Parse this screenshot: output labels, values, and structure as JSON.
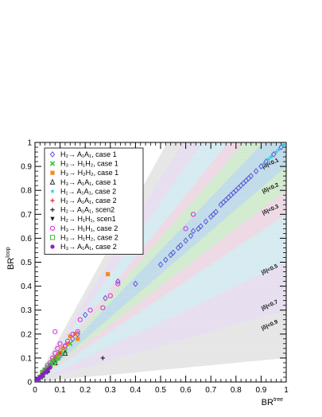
{
  "chart_data": {
    "type": "scatter",
    "xlabel": "BR",
    "xlabel_sup": "tree",
    "ylabel": "BR",
    "ylabel_sup": "loop",
    "xlim": [
      0,
      1
    ],
    "ylim": [
      0,
      1
    ],
    "x_ticks": [
      "0",
      "0.1",
      "0.2",
      "0.3",
      "0.4",
      "0.5",
      "0.6",
      "0.7",
      "0.8",
      "0.9",
      "1"
    ],
    "y_ticks": [
      "0",
      "0.1",
      "0.2",
      "0.3",
      "0.4",
      "0.5",
      "0.6",
      "0.7",
      "0.8",
      "0.9",
      "1"
    ],
    "legend_position": "top-left",
    "bands": [
      {
        "label": "|δ|<0.1",
        "delta": 0.1,
        "color": "#b8d4f0"
      },
      {
        "label": "|δ|<0.2",
        "delta": 0.2,
        "color": "#c6f0c6"
      },
      {
        "label": "|δ|<0.3",
        "delta": 0.3,
        "color": "#f6d2e0"
      },
      {
        "label": "|δ|<0.5",
        "delta": 0.5,
        "color": "#cdeef0"
      },
      {
        "label": "|δ|<0.7",
        "delta": 0.7,
        "color": "#e6d9f2"
      },
      {
        "label": "|δ|<0.9",
        "delta": 0.9,
        "color": "#dcdcdc"
      }
    ],
    "series": [
      {
        "name": "H₂→ A₁A₁, case 1",
        "marker": "diamond-open",
        "color": "#5a5ad8",
        "points": [
          [
            0.98,
            0.98
          ],
          [
            0.95,
            0.95
          ],
          [
            0.92,
            0.92
          ],
          [
            0.9,
            0.9
          ],
          [
            0.88,
            0.88
          ],
          [
            0.86,
            0.86
          ],
          [
            0.85,
            0.85
          ],
          [
            0.84,
            0.84
          ],
          [
            0.83,
            0.83
          ],
          [
            0.82,
            0.82
          ],
          [
            0.81,
            0.81
          ],
          [
            0.8,
            0.8
          ],
          [
            0.79,
            0.79
          ],
          [
            0.78,
            0.78
          ],
          [
            0.77,
            0.77
          ],
          [
            0.76,
            0.76
          ],
          [
            0.75,
            0.75
          ],
          [
            0.74,
            0.74
          ],
          [
            0.72,
            0.71
          ],
          [
            0.71,
            0.7
          ],
          [
            0.7,
            0.69
          ],
          [
            0.68,
            0.67
          ],
          [
            0.66,
            0.65
          ],
          [
            0.65,
            0.64
          ],
          [
            0.63,
            0.63
          ],
          [
            0.62,
            0.61
          ],
          [
            0.6,
            0.59
          ],
          [
            0.58,
            0.57
          ],
          [
            0.57,
            0.56
          ],
          [
            0.55,
            0.54
          ],
          [
            0.54,
            0.53
          ],
          [
            0.52,
            0.51
          ],
          [
            0.5,
            0.49
          ],
          [
            0.4,
            0.41
          ],
          [
            0.33,
            0.42
          ],
          [
            0.28,
            0.35
          ],
          [
            0.2,
            0.28
          ],
          [
            0.17,
            0.2
          ],
          [
            0.15,
            0.18
          ],
          [
            0.12,
            0.15
          ],
          [
            0.1,
            0.11
          ],
          [
            0.08,
            0.09
          ],
          [
            0.06,
            0.07
          ],
          [
            0.05,
            0.05
          ],
          [
            0.04,
            0.04
          ],
          [
            0.03,
            0.03
          ],
          [
            0.02,
            0.02
          ],
          [
            0.01,
            0.01
          ]
        ]
      },
      {
        "name": "H₃→ H₁H₂, case 1",
        "marker": "cross",
        "color": "#2ec82e",
        "points": [
          [
            0.14,
            0.16
          ],
          [
            0.12,
            0.13
          ],
          [
            0.09,
            0.1
          ],
          [
            0.07,
            0.08
          ],
          [
            0.05,
            0.06
          ],
          [
            0.04,
            0.05
          ],
          [
            0.03,
            0.04
          ],
          [
            0.02,
            0.02
          ],
          [
            0.01,
            0.01
          ]
        ]
      },
      {
        "name": "H₃→ H₂H₂, case 1",
        "marker": "square",
        "color": "#f28c1e",
        "points": [
          [
            0.29,
            0.45
          ],
          [
            0.17,
            0.18
          ],
          [
            0.16,
            0.2
          ],
          [
            0.14,
            0.19
          ],
          [
            0.13,
            0.16
          ],
          [
            0.11,
            0.14
          ],
          [
            0.1,
            0.12
          ],
          [
            0.09,
            0.11
          ],
          [
            0.08,
            0.1
          ],
          [
            0.07,
            0.09
          ],
          [
            0.06,
            0.07
          ],
          [
            0.05,
            0.05
          ],
          [
            0.03,
            0.04
          ]
        ]
      },
      {
        "name": "H₃→ A₁A₁, case 1",
        "marker": "triangle-open",
        "color": "#333333",
        "points": [
          [
            0.12,
            0.12
          ],
          [
            0.08,
            0.08
          ],
          [
            0.05,
            0.05
          ],
          [
            0.03,
            0.03
          ]
        ]
      },
      {
        "name": "H₁→ A₁A₁, case 2",
        "marker": "star",
        "color": "#28c8d8",
        "points": [
          [
            0.99,
            0.99
          ],
          [
            0.97,
            0.97
          ],
          [
            0.96,
            0.96
          ],
          [
            0.94,
            0.94
          ],
          [
            0.93,
            0.93
          ],
          [
            0.91,
            0.91
          ],
          [
            0.06,
            0.06
          ],
          [
            0.04,
            0.04
          ]
        ]
      },
      {
        "name": "H₂→ A₁A₁, case 2",
        "marker": "plus",
        "color": "#d83030",
        "points": [
          [
            0.1,
            0.12
          ],
          [
            0.08,
            0.1
          ],
          [
            0.06,
            0.07
          ],
          [
            0.04,
            0.05
          ],
          [
            0.03,
            0.03
          ],
          [
            0.02,
            0.02
          ]
        ]
      },
      {
        "name": "H₂→ A₁A₁, scen2",
        "marker": "plus",
        "color": "#222222",
        "points": [
          [
            0.27,
            0.1
          ],
          [
            0.05,
            0.04
          ],
          [
            0.03,
            0.02
          ],
          [
            0.01,
            0.01
          ]
        ]
      },
      {
        "name": "H₂→ H₁H₁, scen1",
        "marker": "triangle-down",
        "color": "#111111",
        "points": [
          [
            0.03,
            0.03
          ],
          [
            0.02,
            0.02
          ],
          [
            0.01,
            0.01
          ]
        ]
      },
      {
        "name": "H₃→ H₁H₁, case 2",
        "marker": "circle-open",
        "color": "#d828d8",
        "points": [
          [
            0.63,
            0.7
          ],
          [
            0.6,
            0.64
          ],
          [
            0.33,
            0.41
          ],
          [
            0.3,
            0.36
          ],
          [
            0.27,
            0.31
          ],
          [
            0.22,
            0.3
          ],
          [
            0.18,
            0.26
          ],
          [
            0.17,
            0.21
          ],
          [
            0.15,
            0.2
          ],
          [
            0.13,
            0.17
          ],
          [
            0.12,
            0.15
          ],
          [
            0.1,
            0.16
          ],
          [
            0.09,
            0.14
          ],
          [
            0.08,
            0.21
          ],
          [
            0.08,
            0.12
          ],
          [
            0.07,
            0.1
          ],
          [
            0.06,
            0.08
          ],
          [
            0.05,
            0.07
          ],
          [
            0.04,
            0.05
          ],
          [
            0.03,
            0.03
          ],
          [
            0.02,
            0.02
          ]
        ]
      },
      {
        "name": "H₃→ H₁H₂, case 2",
        "marker": "square-open",
        "color": "#3cb83c",
        "points": [
          [
            0.1,
            0.12
          ],
          [
            0.09,
            0.1
          ],
          [
            0.08,
            0.09
          ],
          [
            0.07,
            0.08
          ],
          [
            0.06,
            0.07
          ],
          [
            0.05,
            0.06
          ],
          [
            0.04,
            0.05
          ],
          [
            0.03,
            0.04
          ],
          [
            0.02,
            0.02
          ]
        ]
      },
      {
        "name": "H₃→ A₁A₁, case 2",
        "marker": "circle",
        "color": "#8a1ec8",
        "points": [
          [
            0.06,
            0.06
          ],
          [
            0.05,
            0.05
          ],
          [
            0.04,
            0.04
          ],
          [
            0.03,
            0.03
          ],
          [
            0.02,
            0.02
          ],
          [
            0.01,
            0.01
          ]
        ]
      }
    ]
  }
}
